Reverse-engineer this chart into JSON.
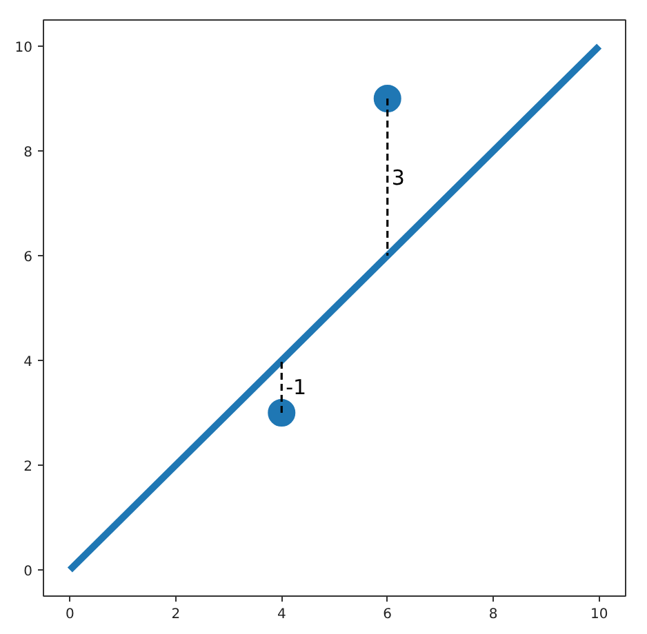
{
  "chart_data": {
    "type": "line",
    "xlim": [
      -0.5,
      10.5
    ],
    "ylim": [
      -0.5,
      10.5
    ],
    "xticks": [
      0,
      2,
      4,
      6,
      8,
      10
    ],
    "yticks": [
      0,
      2,
      4,
      6,
      8,
      10
    ],
    "grid": false,
    "series": [
      {
        "color": "#1f77b4",
        "x": [
          0,
          10
        ],
        "values": [
          0,
          10
        ]
      },
      {
        "type": "scatter",
        "color": "#1f77b4",
        "marker": "circle",
        "x": [
          4,
          6
        ],
        "values": [
          3,
          9
        ]
      },
      {
        "color": "#000000",
        "line_style": "dashed",
        "x": [
          4,
          4
        ],
        "values": [
          3,
          4
        ]
      },
      {
        "color": "#000000",
        "line_style": "dashed",
        "x": [
          6,
          6
        ],
        "values": [
          9,
          6
        ]
      }
    ],
    "annotations": [
      {
        "text": "-1",
        "x": 4,
        "y": 3.5
      },
      {
        "text": "3",
        "x": 6,
        "y": 7.5
      }
    ]
  }
}
